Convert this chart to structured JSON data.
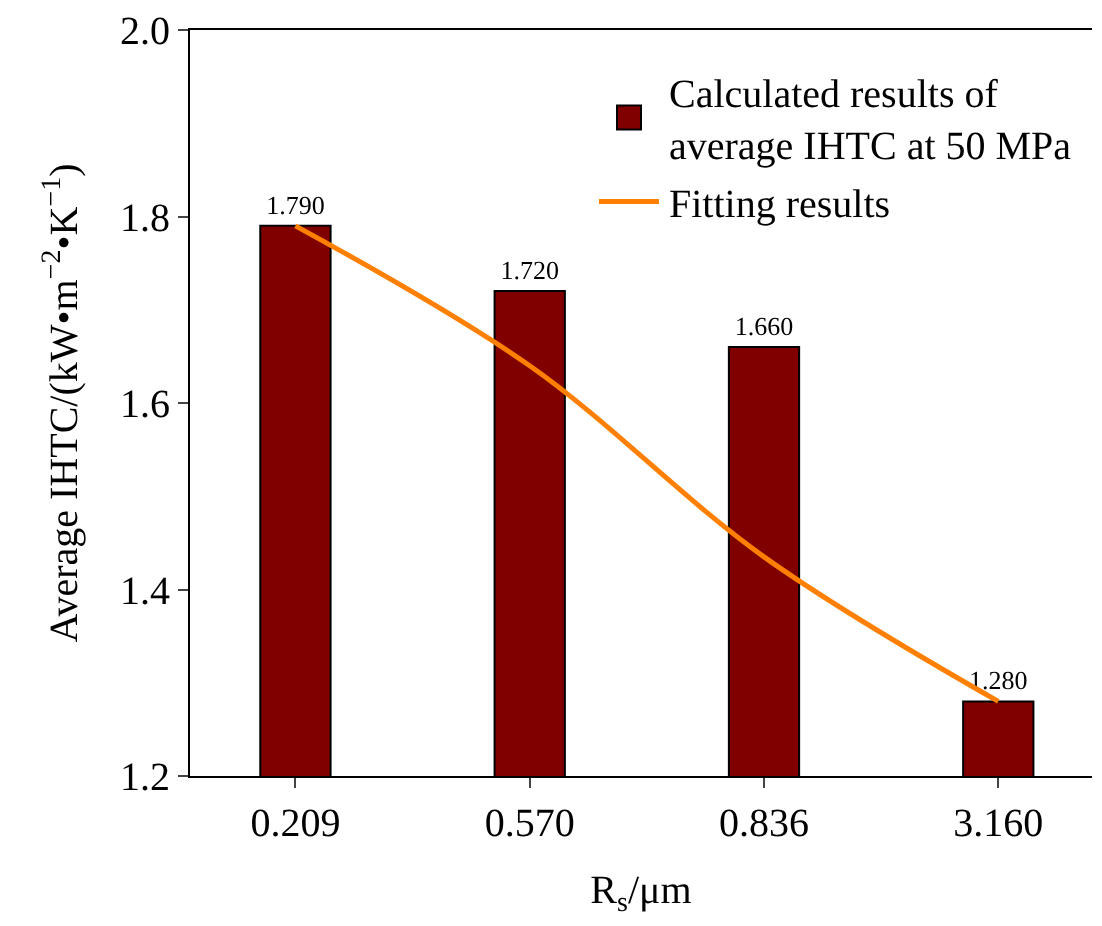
{
  "chart_data": {
    "type": "bar",
    "xlabel": "R$_{s}$/μm",
    "ylabel": "Average IHTC/(kW•m$^{−2}$•K$^{−1}$)",
    "categories": [
      "0.209",
      "0.570",
      "0.836",
      "3.160"
    ],
    "series": [
      {
        "name": "Calculated results of\naverage IHTC at 50 MPa",
        "color": "#800000",
        "values": [
          1.79,
          1.72,
          1.66,
          1.28
        ],
        "value_labels": [
          "1.790",
          "1.720",
          "1.660",
          "1.280"
        ]
      },
      {
        "name": "Fitting results",
        "type": "line",
        "color": "#ff8000",
        "values": [
          1.79,
          1.64,
          1.435,
          1.28
        ],
        "marker": "none",
        "line_style": "solid"
      }
    ],
    "ylim": [
      1.2,
      2.0
    ],
    "yticks": [
      1.2,
      1.4,
      1.6,
      1.8,
      {
        "value": 2.0,
        "label": "2.0"
      }
    ],
    "legend": "top right"
  }
}
